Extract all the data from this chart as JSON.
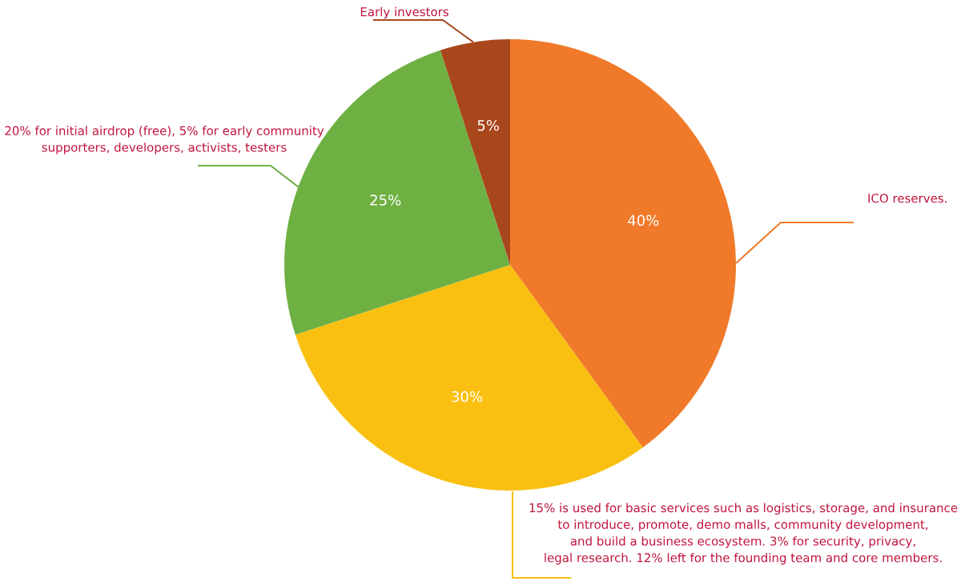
{
  "chart_data": {
    "type": "pie",
    "categories": [
      "ICO reserves.",
      "15% is used for basic services such as logistics, storage, and insurance\nto introduce, promote, demo malls, community development,\nand build a business ecosystem. 3% for security, privacy,\nlegal research. 12% left for the founding team and core members.",
      "20% for initial airdrop (free), 5% for early community\nsupporters, developers, activists, testers",
      "Early investors"
    ],
    "values": [
      40,
      30,
      25,
      5
    ],
    "value_labels": [
      "40%",
      "30%",
      "25%",
      "5%"
    ],
    "colors": [
      "#f07a2a",
      "#f9c011",
      "#6fb043",
      "#a8461c"
    ]
  }
}
